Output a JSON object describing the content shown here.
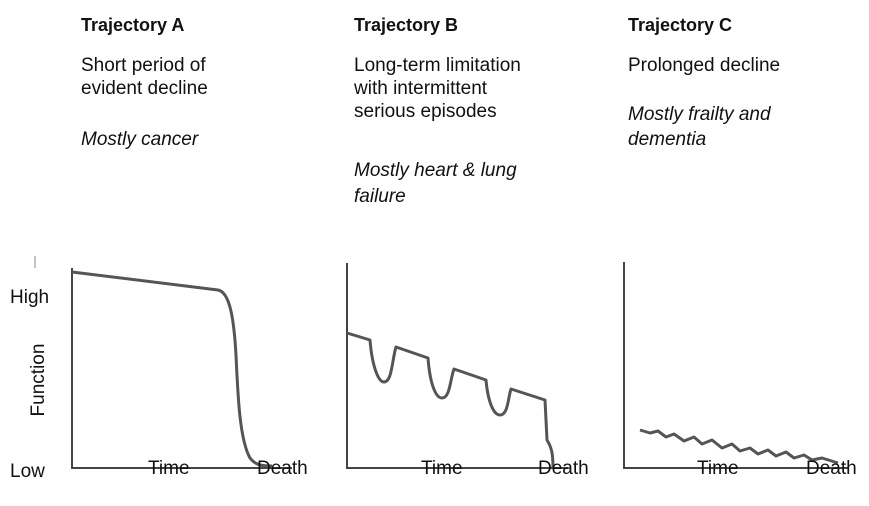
{
  "panels": [
    {
      "title": "Trajectory A",
      "description": [
        "Short period of",
        "evident decline"
      ],
      "cause": [
        "Mostly cancer"
      ],
      "x_labels": [
        "Time",
        "Death"
      ]
    },
    {
      "title": "Trajectory B",
      "description": [
        "Long-term limitation",
        "with intermittent",
        "serious episodes"
      ],
      "cause": [
        "Mostly heart & lung",
        "failure"
      ],
      "x_labels": [
        "Time",
        "Death"
      ]
    },
    {
      "title": "Trajectory C",
      "description": [
        "Prolonged decline"
      ],
      "cause": [
        "Mostly frailty and",
        "dementia"
      ],
      "x_labels": [
        "Time",
        "Death"
      ]
    }
  ],
  "y_axis": {
    "high": "High",
    "label": "Function",
    "low": "Low"
  }
}
